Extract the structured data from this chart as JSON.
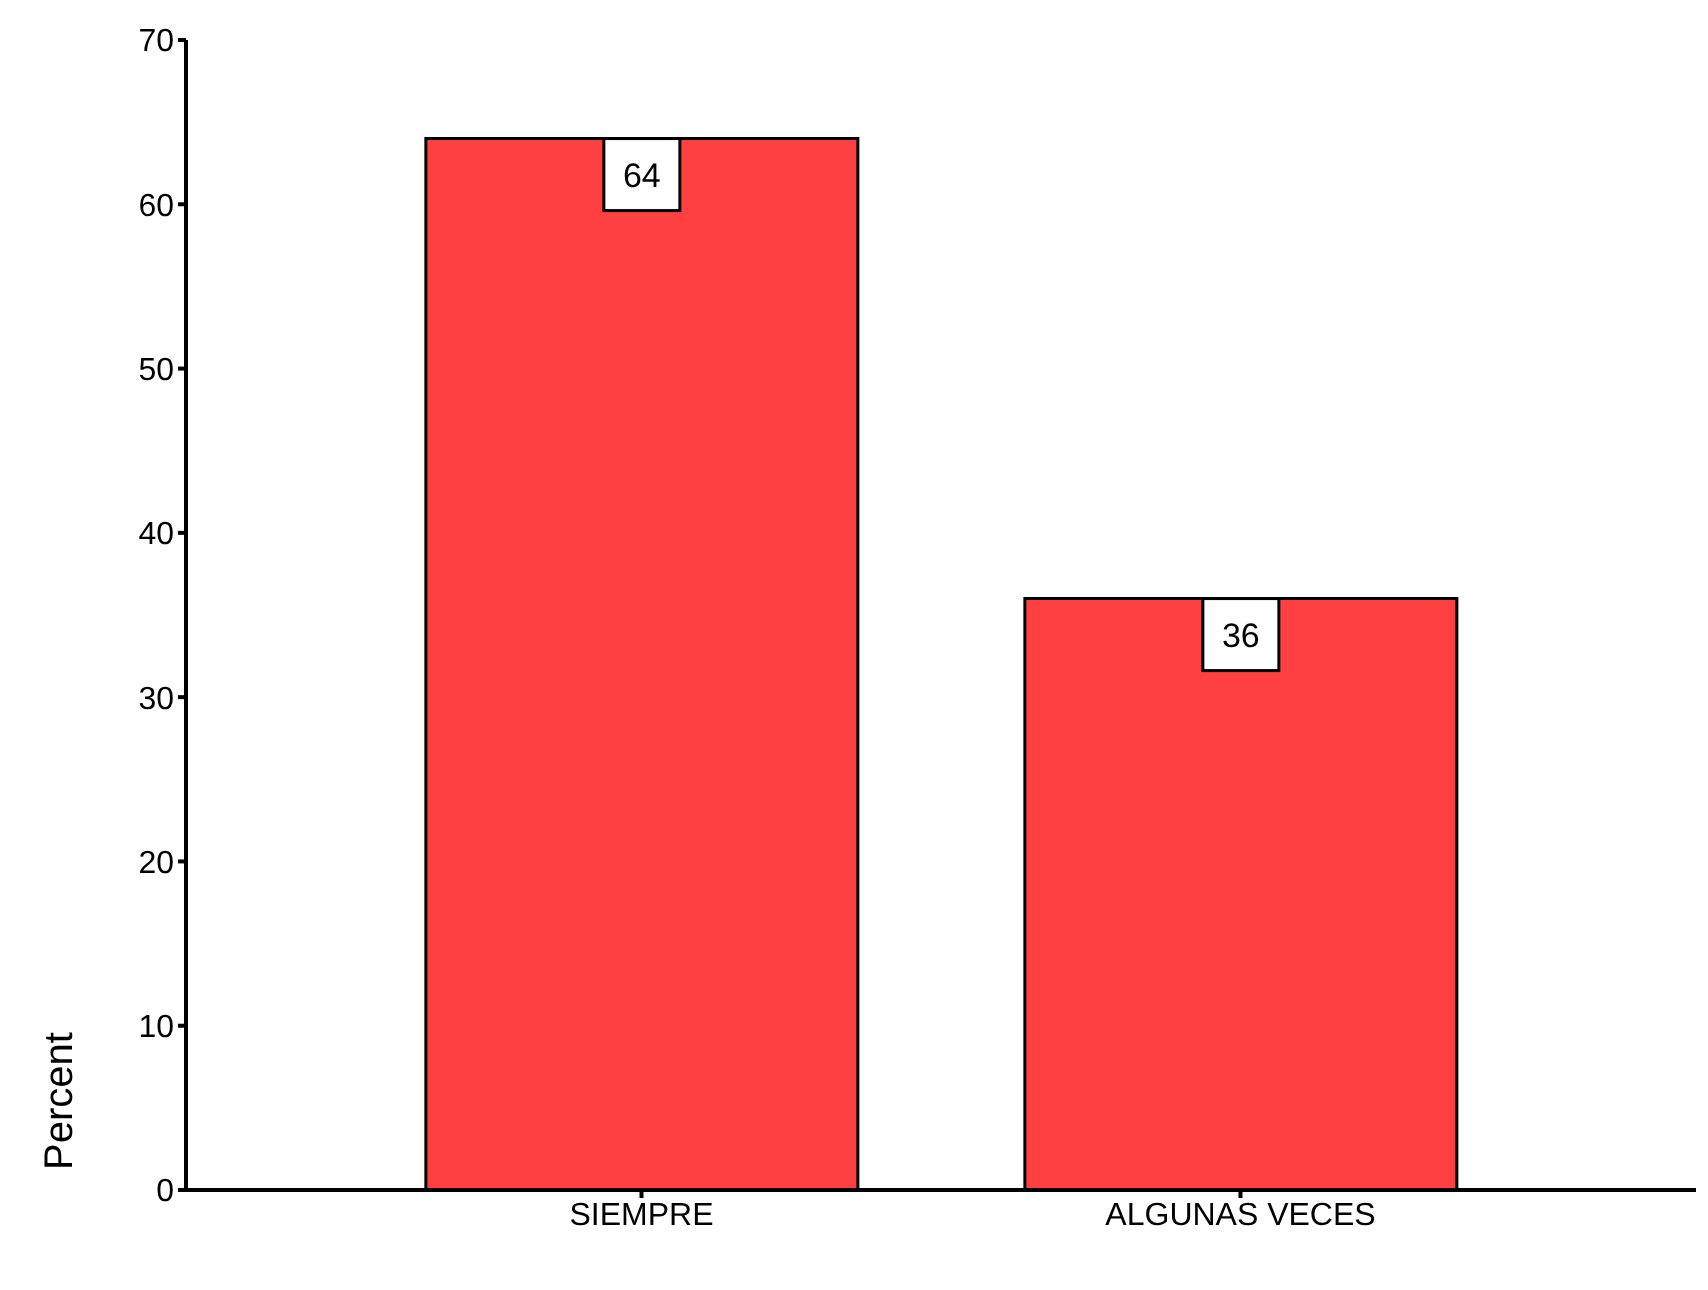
{
  "chart_data": {
    "type": "bar",
    "ylabel": "Percent",
    "categories": [
      "SIEMPRE",
      "ALGUNAS VECES"
    ],
    "values": [
      64,
      36
    ],
    "color": "#ff4040",
    "ylim": [
      0,
      70
    ],
    "yticks": [
      0,
      10,
      20,
      30,
      40,
      50,
      60,
      70
    ],
    "data_labels": true
  }
}
